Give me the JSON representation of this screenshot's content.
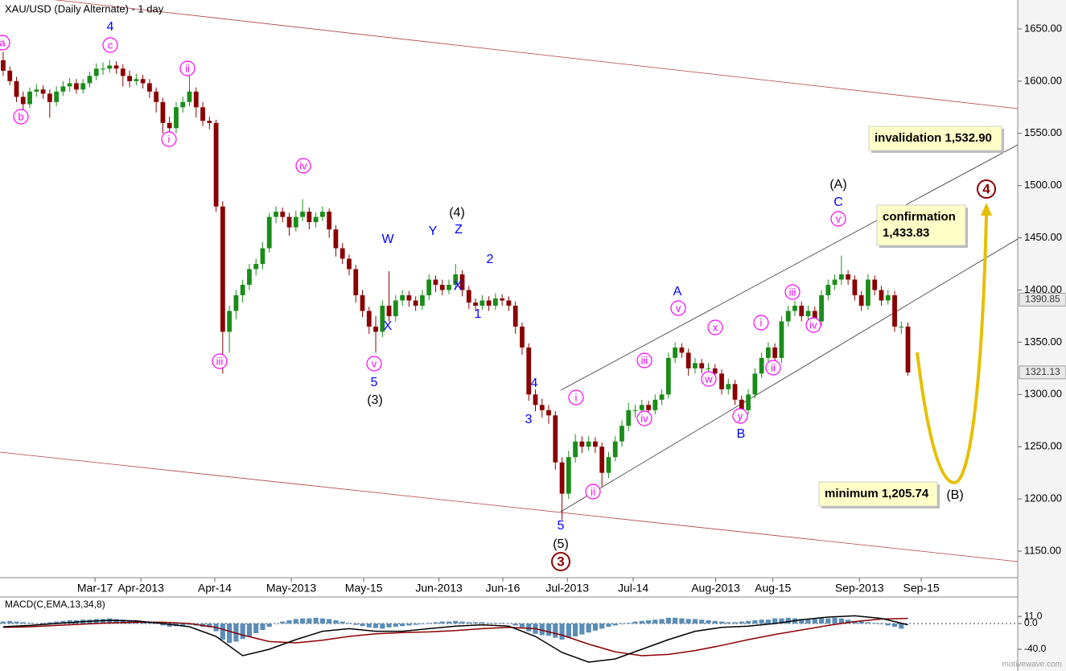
{
  "chart_data": {
    "type": "candlestick",
    "title": "XAU/USD (Daily Alternate) - 1 day",
    "footer": "motivewave.com",
    "up_color": "#1a8c1a",
    "down_color": "#8b0000",
    "xlim": [
      -0.48,
      152.5
    ],
    "xticks": [
      {
        "value": 13.8,
        "label": "Mar-17"
      },
      {
        "value": 20.7,
        "label": "Apr-2013"
      },
      {
        "value": 31.8,
        "label": "Apr-14"
      },
      {
        "value": 43.3,
        "label": "May-2013"
      },
      {
        "value": 54.2,
        "label": "May-15"
      },
      {
        "value": 65.5,
        "label": "Jun-2013"
      },
      {
        "value": 75.1,
        "label": "Jun-16"
      },
      {
        "value": 84.8,
        "label": "Jul-2013"
      },
      {
        "value": 94.7,
        "label": "Jul-14"
      },
      {
        "value": 107.1,
        "label": "Aug-2013"
      },
      {
        "value": 115.7,
        "label": "Aug-15"
      },
      {
        "value": 128.7,
        "label": "Sep-2013"
      },
      {
        "value": 138.0,
        "label": "Sep-15"
      }
    ],
    "ylim": [
      1124.6,
      1677.7
    ],
    "yticks": [
      {
        "value": 1150,
        "label": "1150.00"
      },
      {
        "value": 1200,
        "label": "1200.00"
      },
      {
        "value": 1250,
        "label": "1250.00"
      },
      {
        "value": 1300,
        "label": "1300.00"
      },
      {
        "value": 1350,
        "label": "1350.00"
      },
      {
        "value": 1400,
        "label": "1400.00"
      },
      {
        "value": 1450,
        "label": "1450.00"
      },
      {
        "value": 1500,
        "label": "1500.00"
      },
      {
        "value": 1550,
        "label": "1550.00"
      },
      {
        "value": 1600,
        "label": "1600.00"
      },
      {
        "value": 1650,
        "label": "1650.00"
      }
    ],
    "price_markers": [
      1390.85,
      1321.13
    ],
    "ohlc": [
      [
        1620,
        1628,
        1605,
        1610
      ],
      [
        1610,
        1614,
        1596,
        1600
      ],
      [
        1600,
        1604,
        1580,
        1585
      ],
      [
        1585,
        1590,
        1572,
        1578
      ],
      [
        1578,
        1594,
        1574,
        1590
      ],
      [
        1590,
        1597,
        1585,
        1592
      ],
      [
        1592,
        1596,
        1583,
        1588
      ],
      [
        1588,
        1592,
        1565,
        1580
      ],
      [
        1580,
        1595,
        1576,
        1590
      ],
      [
        1590,
        1600,
        1586,
        1595
      ],
      [
        1595,
        1603,
        1590,
        1598
      ],
      [
        1598,
        1602,
        1588,
        1592
      ],
      [
        1592,
        1602,
        1588,
        1598
      ],
      [
        1598,
        1609,
        1594,
        1605
      ],
      [
        1605,
        1617,
        1601,
        1612
      ],
      [
        1612,
        1618,
        1606,
        1612
      ],
      [
        1612,
        1620,
        1608,
        1615
      ],
      [
        1615,
        1619,
        1607,
        1612
      ],
      [
        1612,
        1616,
        1595,
        1605
      ],
      [
        1605,
        1610,
        1594,
        1600
      ],
      [
        1600,
        1607,
        1596,
        1602
      ],
      [
        1602,
        1606,
        1593,
        1598
      ],
      [
        1598,
        1602,
        1584,
        1590
      ],
      [
        1590,
        1594,
        1570,
        1580
      ],
      [
        1580,
        1584,
        1550,
        1560
      ],
      [
        1560,
        1566,
        1540,
        1555
      ],
      [
        1555,
        1580,
        1550,
        1575
      ],
      [
        1575,
        1585,
        1570,
        1580
      ],
      [
        1580,
        1605,
        1576,
        1590
      ],
      [
        1590,
        1594,
        1565,
        1575
      ],
      [
        1575,
        1580,
        1557,
        1562
      ],
      [
        1562,
        1566,
        1554,
        1560
      ],
      [
        1560,
        1563,
        1475,
        1480
      ],
      [
        1480,
        1485,
        1320,
        1360
      ],
      [
        1360,
        1385,
        1340,
        1380
      ],
      [
        1380,
        1400,
        1372,
        1395
      ],
      [
        1395,
        1410,
        1388,
        1405
      ],
      [
        1405,
        1425,
        1400,
        1420
      ],
      [
        1420,
        1430,
        1414,
        1425
      ],
      [
        1425,
        1446,
        1420,
        1440
      ],
      [
        1440,
        1474,
        1436,
        1470
      ],
      [
        1470,
        1480,
        1464,
        1475
      ],
      [
        1475,
        1479,
        1465,
        1470
      ],
      [
        1470,
        1474,
        1452,
        1460
      ],
      [
        1460,
        1476,
        1456,
        1470
      ],
      [
        1470,
        1487,
        1466,
        1475
      ],
      [
        1475,
        1479,
        1458,
        1465
      ],
      [
        1465,
        1474,
        1460,
        1470
      ],
      [
        1470,
        1480,
        1466,
        1475
      ],
      [
        1475,
        1478,
        1450,
        1458
      ],
      [
        1458,
        1462,
        1432,
        1440
      ],
      [
        1440,
        1445,
        1425,
        1430
      ],
      [
        1430,
        1434,
        1414,
        1420
      ],
      [
        1420,
        1424,
        1388,
        1395
      ],
      [
        1395,
        1400,
        1374,
        1380
      ],
      [
        1380,
        1384,
        1358,
        1365
      ],
      [
        1365,
        1375,
        1340,
        1360
      ],
      [
        1360,
        1390,
        1355,
        1385
      ],
      [
        1385,
        1418,
        1370,
        1375
      ],
      [
        1375,
        1395,
        1370,
        1390
      ],
      [
        1390,
        1400,
        1385,
        1395
      ],
      [
        1395,
        1399,
        1384,
        1390
      ],
      [
        1390,
        1394,
        1380,
        1385
      ],
      [
        1385,
        1400,
        1381,
        1395
      ],
      [
        1395,
        1415,
        1390,
        1410
      ],
      [
        1410,
        1414,
        1398,
        1405
      ],
      [
        1405,
        1410,
        1395,
        1400
      ],
      [
        1400,
        1410,
        1396,
        1405
      ],
      [
        1405,
        1425,
        1400,
        1415
      ],
      [
        1415,
        1419,
        1394,
        1400
      ],
      [
        1400,
        1404,
        1382,
        1388
      ],
      [
        1388,
        1392,
        1380,
        1385
      ],
      [
        1385,
        1395,
        1381,
        1390
      ],
      [
        1390,
        1394,
        1380,
        1385
      ],
      [
        1385,
        1397,
        1381,
        1392
      ],
      [
        1392,
        1396,
        1385,
        1390
      ],
      [
        1390,
        1394,
        1380,
        1385
      ],
      [
        1385,
        1389,
        1358,
        1365
      ],
      [
        1365,
        1369,
        1338,
        1345
      ],
      [
        1345,
        1349,
        1294,
        1300
      ],
      [
        1300,
        1305,
        1284,
        1290
      ],
      [
        1290,
        1296,
        1278,
        1285
      ],
      [
        1285,
        1290,
        1272,
        1280
      ],
      [
        1280,
        1284,
        1228,
        1235
      ],
      [
        1235,
        1240,
        1180,
        1205
      ],
      [
        1205,
        1246,
        1200,
        1240
      ],
      [
        1240,
        1262,
        1235,
        1255
      ],
      [
        1255,
        1260,
        1244,
        1250
      ],
      [
        1250,
        1260,
        1246,
        1255
      ],
      [
        1255,
        1259,
        1244,
        1250
      ],
      [
        1250,
        1254,
        1212,
        1225
      ],
      [
        1225,
        1245,
        1220,
        1240
      ],
      [
        1240,
        1260,
        1236,
        1255
      ],
      [
        1255,
        1275,
        1250,
        1270
      ],
      [
        1270,
        1292,
        1265,
        1285
      ],
      [
        1285,
        1290,
        1278,
        1285
      ],
      [
        1285,
        1295,
        1281,
        1290
      ],
      [
        1290,
        1294,
        1280,
        1285
      ],
      [
        1285,
        1300,
        1281,
        1295
      ],
      [
        1295,
        1305,
        1290,
        1300
      ],
      [
        1300,
        1340,
        1296,
        1335
      ],
      [
        1335,
        1350,
        1330,
        1345
      ],
      [
        1345,
        1349,
        1335,
        1340
      ],
      [
        1340,
        1344,
        1318,
        1325
      ],
      [
        1325,
        1335,
        1320,
        1330
      ],
      [
        1330,
        1334,
        1320,
        1325
      ],
      [
        1325,
        1330,
        1320,
        1325
      ],
      [
        1325,
        1329,
        1314,
        1320
      ],
      [
        1320,
        1324,
        1300,
        1305
      ],
      [
        1305,
        1315,
        1300,
        1310
      ],
      [
        1310,
        1314,
        1290,
        1295
      ],
      [
        1295,
        1299,
        1272,
        1285
      ],
      [
        1285,
        1305,
        1281,
        1300
      ],
      [
        1300,
        1325,
        1296,
        1320
      ],
      [
        1320,
        1340,
        1316,
        1335
      ],
      [
        1335,
        1350,
        1330,
        1345
      ],
      [
        1345,
        1349,
        1328,
        1335
      ],
      [
        1335,
        1375,
        1330,
        1370
      ],
      [
        1370,
        1385,
        1365,
        1380
      ],
      [
        1380,
        1390,
        1375,
        1385
      ],
      [
        1385,
        1389,
        1370,
        1375
      ],
      [
        1375,
        1385,
        1371,
        1380
      ],
      [
        1380,
        1384,
        1365,
        1370
      ],
      [
        1370,
        1400,
        1366,
        1395
      ],
      [
        1395,
        1410,
        1390,
        1405
      ],
      [
        1405,
        1415,
        1400,
        1410
      ],
      [
        1410,
        1433,
        1405,
        1415
      ],
      [
        1415,
        1419,
        1405,
        1410
      ],
      [
        1410,
        1414,
        1390,
        1395
      ],
      [
        1395,
        1399,
        1380,
        1385
      ],
      [
        1385,
        1415,
        1381,
        1410
      ],
      [
        1410,
        1414,
        1395,
        1400
      ],
      [
        1400,
        1404,
        1385,
        1390
      ],
      [
        1390,
        1400,
        1386,
        1395
      ],
      [
        1395,
        1399,
        1360,
        1365
      ],
      [
        1365,
        1370,
        1358,
        1365
      ],
      [
        1365,
        1369,
        1318,
        1321.13
      ]
    ],
    "annotations": [
      {
        "text": "a",
        "color": "#ff00ff",
        "circled": true
      },
      {
        "text": "c",
        "color": "#ff00ff",
        "circled": true
      },
      {
        "text": "b",
        "color": "#ff00ff",
        "circled": true
      },
      {
        "text": "ii",
        "color": "#ff00ff",
        "circled": true
      },
      {
        "text": "i",
        "color": "#ff00ff",
        "circled": true
      },
      {
        "text": "iii",
        "color": "#ff00ff",
        "circled": true
      },
      {
        "text": "iv",
        "color": "#ff00ff",
        "circled": true
      },
      {
        "text": "v",
        "color": "#ff00ff",
        "circled": true
      },
      {
        "text": "i",
        "color": "#ff00ff",
        "circled": true
      },
      {
        "text": "ii",
        "color": "#ff00ff",
        "circled": true
      },
      {
        "text": "iii",
        "color": "#ff00ff",
        "circled": true
      },
      {
        "text": "iv",
        "color": "#ff00ff",
        "circled": true
      },
      {
        "text": "v",
        "color": "#ff00ff",
        "circled": true
      },
      {
        "text": "x",
        "color": "#ff00ff",
        "circled": true
      },
      {
        "text": "w",
        "color": "#ff00ff",
        "circled": true
      },
      {
        "text": "y",
        "color": "#ff00ff",
        "circled": true
      },
      {
        "text": "i",
        "color": "#ff00ff",
        "circled": true
      },
      {
        "text": "ii",
        "color": "#ff00ff",
        "circled": true
      },
      {
        "text": "iii",
        "color": "#ff00ff",
        "circled": true
      },
      {
        "text": "iv",
        "color": "#ff00ff",
        "circled": true
      },
      {
        "text": "v",
        "color": "#ff00ff",
        "circled": true
      },
      {
        "text": "4",
        "color": "#0000ff",
        "circled": false
      },
      {
        "text": "W",
        "color": "#0000ff",
        "circled": false
      },
      {
        "text": "Y",
        "color": "#0000ff",
        "circled": false
      },
      {
        "text": "Z",
        "color": "#0000ff",
        "circled": false
      },
      {
        "text": "X",
        "color": "#0000ff",
        "circled": false
      },
      {
        "text": "X",
        "color": "#0000ff",
        "circled": false
      },
      {
        "text": "5",
        "color": "#0000ff",
        "circled": false
      },
      {
        "text": "2",
        "color": "#0000ff",
        "circled": false
      },
      {
        "text": "1",
        "color": "#0000ff",
        "circled": false
      },
      {
        "text": "4",
        "color": "#0000ff",
        "circled": false
      },
      {
        "text": "3",
        "color": "#0000ff",
        "circled": false
      },
      {
        "text": "5",
        "color": "#0000ff",
        "circled": false
      },
      {
        "text": "A",
        "color": "#0000ff",
        "circled": false
      },
      {
        "text": "B",
        "color": "#0000ff",
        "circled": false
      },
      {
        "text": "C",
        "color": "#0000ff",
        "circled": false
      },
      {
        "text": "(4)",
        "color": "#000000",
        "circled": false
      },
      {
        "text": "(3)",
        "color": "#000000",
        "circled": false
      },
      {
        "text": "(A)",
        "color": "#000000",
        "circled": false
      },
      {
        "text": "(5)",
        "color": "#000000",
        "circled": false
      },
      {
        "text": "(B)",
        "color": "#000000",
        "circled": false
      },
      {
        "text": "3",
        "color": "#8b0000",
        "circled": true
      },
      {
        "text": "4",
        "color": "#8b0000",
        "circled": true
      }
    ],
    "boxes": [
      {
        "lines": [
          "invalidation 1,532.90"
        ]
      },
      {
        "lines": [
          "confirmation",
          "1,433.83"
        ]
      },
      {
        "lines": [
          "minimum 1,205.74"
        ]
      }
    ],
    "macd": {
      "label": "MACD(C,EMA,13,34,8)",
      "hist_color": "#5b8db8",
      "macd_color": "#000000",
      "signal_color": "#8b0000",
      "ylim": [
        -68.75,
        41.25
      ],
      "yticks": [
        {
          "value": 11,
          "label": "11.0"
        },
        {
          "value": 0,
          "label": "0.0"
        },
        {
          "value": -40,
          "label": "-40.0"
        }
      ],
      "histogram": [
        3,
        4,
        3,
        2,
        1,
        0,
        1,
        2,
        3,
        4,
        5,
        5,
        6,
        6,
        7,
        7,
        8,
        7,
        6,
        5,
        4,
        3,
        2,
        0,
        -3,
        -5,
        -4,
        -3,
        -2,
        -3,
        -5,
        -6,
        -12,
        -25,
        -30,
        -28,
        -24,
        -20,
        -15,
        -10,
        -5,
        0,
        3,
        5,
        7,
        8,
        8,
        9,
        8,
        7,
        5,
        3,
        1,
        -2,
        -4,
        -6,
        -7,
        -8,
        -6,
        -5,
        -4,
        -3,
        -2,
        -1,
        1,
        2,
        3,
        3,
        4,
        3,
        2,
        2,
        2,
        1,
        1,
        1,
        0,
        -3,
        -6,
        -12,
        -16,
        -18,
        -19,
        -22,
        -25,
        -22,
        -20,
        -17,
        -14,
        -11,
        -8,
        -5,
        -3,
        -1,
        1,
        3,
        4,
        5,
        6,
        7,
        9,
        9,
        8,
        7,
        7,
        6,
        5,
        4,
        3,
        2,
        2,
        3,
        4,
        5,
        6,
        6,
        8,
        8,
        9,
        8,
        7,
        6,
        7,
        8,
        8,
        9,
        8,
        6,
        4,
        3,
        2,
        1,
        -1,
        -3,
        -5,
        -8
      ],
      "line_x": [
        0,
        4,
        8,
        12,
        16,
        20,
        24,
        28,
        32,
        36,
        40,
        44,
        48,
        52,
        56,
        60,
        64,
        68,
        72,
        76,
        80,
        84,
        88,
        92,
        96,
        100,
        104,
        108,
        112,
        116,
        120,
        124,
        128,
        132,
        136
      ],
      "macd": [
        -5,
        -3,
        0,
        3,
        5,
        4,
        0,
        -5,
        -20,
        -50,
        -40,
        -25,
        -12,
        -8,
        -12,
        -12,
        -8,
        -4,
        -2,
        -4,
        -20,
        -45,
        -60,
        -55,
        -40,
        -25,
        -12,
        -6,
        -4,
        0,
        6,
        10,
        12,
        8,
        -2
      ],
      "signal": [
        -6,
        -5,
        -3,
        -1,
        1,
        2,
        2,
        0,
        -6,
        -18,
        -28,
        -30,
        -26,
        -20,
        -16,
        -14,
        -13,
        -11,
        -8,
        -6,
        -8,
        -18,
        -32,
        -44,
        -50,
        -48,
        -42,
        -34,
        -25,
        -17,
        -10,
        -3,
        3,
        7,
        8
      ]
    }
  }
}
